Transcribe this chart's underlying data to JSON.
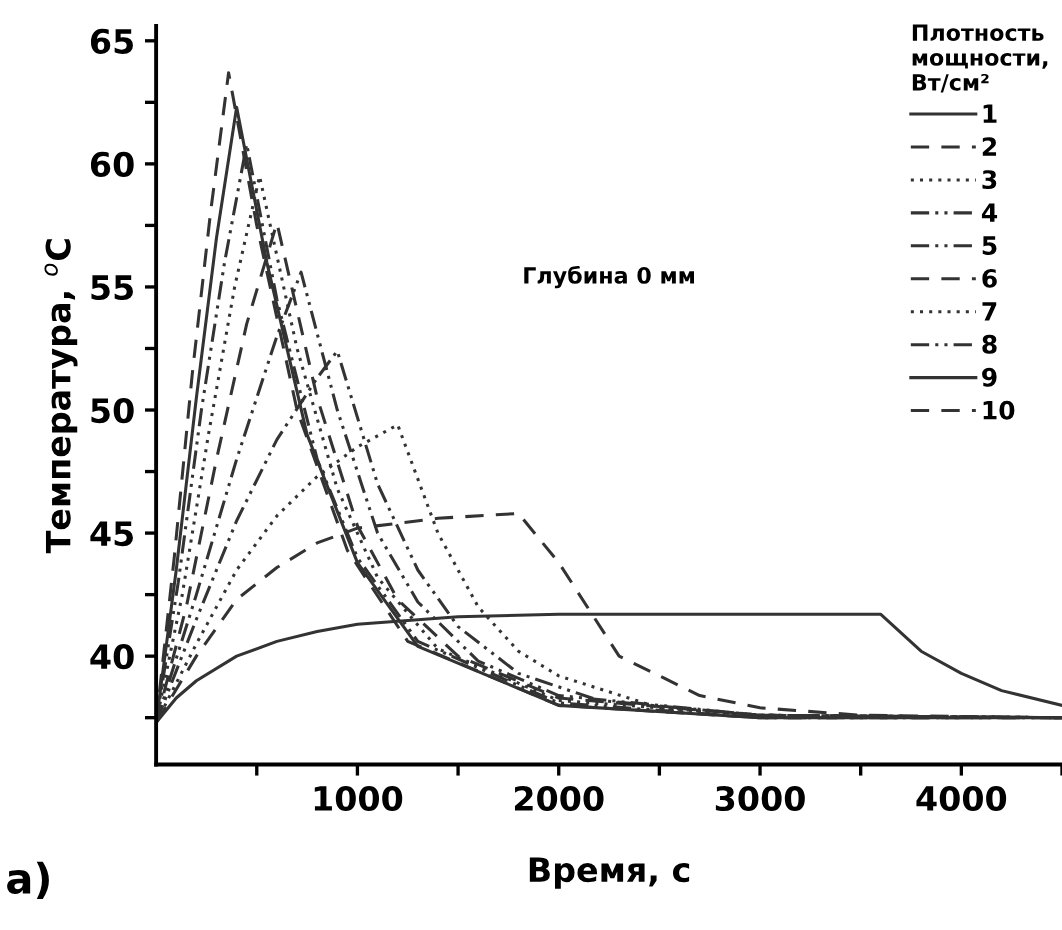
{
  "chart_data": {
    "type": "line",
    "xlabel": "Время, с",
    "ylabel": "Температура, $^{o}$C",
    "legend_title": "Плотность\nмощности,\nВт/см²",
    "annotations": [
      "Глубина 0 мм",
      "а)"
    ],
    "xlim": [
      0,
      4500
    ],
    "ylim": [
      35.6,
      65.6
    ],
    "xticks": [
      {
        "value": 500,
        "label": null
      },
      1000,
      {
        "value": 1500,
        "label": null
      },
      2000,
      {
        "value": 2500,
        "label": null
      },
      3000,
      {
        "value": 3500,
        "label": null
      },
      4000,
      {
        "value": 4500,
        "label": null
      }
    ],
    "yticks": [
      {
        "value": 37.5,
        "label": null
      },
      40,
      {
        "value": 42.5,
        "label": null
      },
      45,
      {
        "value": 47.5,
        "label": null
      },
      50,
      {
        "value": 52.5,
        "label": null
      },
      55,
      {
        "value": 57.5,
        "label": null
      },
      60,
      {
        "value": 62.5,
        "label": null
      },
      65
    ],
    "grid": false,
    "legend": "top right",
    "marker": "none",
    "series": [
      {
        "name": "1",
        "color": "#333333",
        "line_style": "solid",
        "x": [
          0,
          100,
          200,
          400,
          600,
          800,
          1000,
          1500,
          2000,
          3600,
          3800,
          4000,
          4200,
          4500
        ],
        "values": [
          37.3,
          38.3,
          39.0,
          40.0,
          40.6,
          41.0,
          41.3,
          41.6,
          41.7,
          41.7,
          40.2,
          39.3,
          38.6,
          38.0
        ]
      },
      {
        "name": "2",
        "color": "#333333",
        "line_style": "dashed",
        "x": [
          0,
          200,
          400,
          600,
          800,
          1000,
          1400,
          1800,
          2000,
          2300,
          2700,
          3000,
          3500,
          4500
        ],
        "values": [
          37.3,
          40.0,
          42.3,
          43.6,
          44.6,
          45.2,
          45.6,
          45.8,
          43.8,
          40.0,
          38.4,
          37.9,
          37.6,
          37.5
        ]
      },
      {
        "name": "3",
        "color": "#333333",
        "line_style": "dotted",
        "x": [
          0,
          200,
          400,
          600,
          800,
          1000,
          1200,
          1400,
          1600,
          1800,
          2000,
          2500,
          3000,
          4500
        ],
        "values": [
          37.3,
          40.5,
          43.5,
          45.7,
          47.3,
          48.5,
          49.4,
          45.0,
          42.0,
          40.2,
          39.2,
          37.9,
          37.6,
          37.5
        ]
      },
      {
        "name": "4",
        "color": "#333333",
        "line_style": "dashdot",
        "x": [
          0,
          200,
          400,
          600,
          800,
          900,
          1100,
          1300,
          1500,
          1800,
          2200,
          3000,
          4500
        ],
        "values": [
          37.3,
          41.5,
          45.5,
          48.8,
          51.3,
          52.4,
          47.0,
          43.5,
          41.2,
          39.3,
          38.2,
          37.6,
          37.5
        ]
      },
      {
        "name": "5",
        "color": "#333333",
        "line_style": "dashdot",
        "x": [
          0,
          200,
          400,
          600,
          720,
          900,
          1100,
          1300,
          1600,
          2000,
          3000,
          4500
        ],
        "values": [
          37.3,
          42.5,
          48.0,
          53.0,
          55.6,
          50.0,
          45.0,
          42.2,
          39.8,
          38.4,
          37.6,
          37.5
        ]
      },
      {
        "name": "6",
        "color": "#333333",
        "line_style": "dashed",
        "x": [
          0,
          150,
          300,
          450,
          600,
          800,
          1000,
          1200,
          1500,
          2000,
          3000,
          4500
        ],
        "values": [
          37.3,
          42.0,
          48.0,
          53.5,
          57.6,
          50.5,
          45.3,
          42.3,
          40.0,
          38.3,
          37.6,
          37.5
        ]
      },
      {
        "name": "7",
        "color": "#333333",
        "line_style": "dotted",
        "x": [
          0,
          130,
          260,
          390,
          514,
          700,
          900,
          1100,
          1400,
          2000,
          3000,
          4500
        ],
        "values": [
          37.3,
          42.5,
          49.0,
          55.0,
          59.5,
          52.5,
          46.8,
          43.2,
          40.3,
          38.2,
          37.6,
          37.5
        ]
      },
      {
        "name": "8",
        "color": "#333333",
        "line_style": "dashdot",
        "x": [
          0,
          110,
          225,
          340,
          450,
          600,
          800,
          1000,
          1300,
          2000,
          3000,
          4500
        ],
        "values": [
          37.3,
          43.0,
          50.0,
          56.0,
          60.8,
          54.5,
          48.0,
          44.0,
          40.6,
          38.1,
          37.5,
          37.5
        ]
      },
      {
        "name": "9",
        "color": "#333333",
        "line_style": "solid",
        "x": [
          0,
          100,
          200,
          300,
          400,
          550,
          750,
          1000,
          1300,
          2000,
          3000,
          4500
        ],
        "values": [
          37.3,
          43.5,
          50.5,
          57.0,
          62.3,
          56.0,
          49.0,
          43.8,
          40.4,
          38.0,
          37.5,
          37.5
        ]
      },
      {
        "name": "10",
        "color": "#333333",
        "line_style": "dashed",
        "x": [
          0,
          90,
          180,
          270,
          360,
          500,
          700,
          950,
          1250,
          2000,
          3000,
          4500
        ],
        "values": [
          37.3,
          44.0,
          51.5,
          58.0,
          63.7,
          57.5,
          50.0,
          44.3,
          40.6,
          38.0,
          37.5,
          37.5
        ]
      }
    ]
  }
}
